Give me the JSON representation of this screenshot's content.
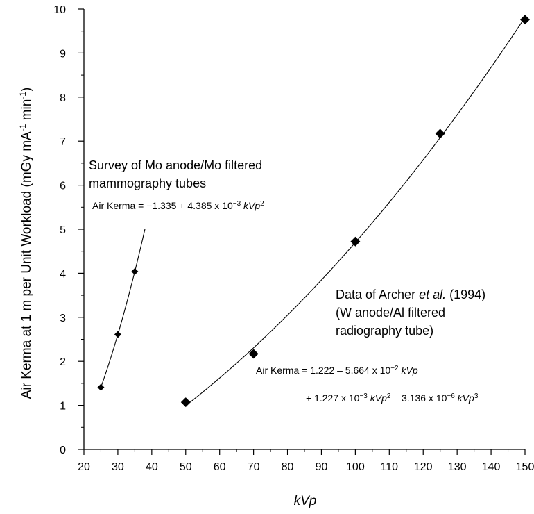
{
  "chart_data": {
    "type": "scatter",
    "title": "",
    "xlabel": "kVp",
    "ylabel": "Air Kerma at 1 m per Unit Workload (mGy mA-1 min-1)",
    "ylabel_parts": {
      "main": "Air Kerma at 1 m per Unit Workload (mGy mA",
      "sup1": "-1",
      "mid": " min",
      "sup2": "-1",
      "end": ")"
    },
    "xlim": [
      20,
      150
    ],
    "ylim": [
      0,
      10
    ],
    "x_ticks": [
      20,
      30,
      40,
      50,
      60,
      70,
      80,
      90,
      100,
      110,
      120,
      130,
      140,
      150
    ],
    "y_ticks": [
      0,
      1,
      2,
      3,
      4,
      5,
      6,
      7,
      8,
      9,
      10
    ],
    "grid": false,
    "legend": "none",
    "series": [
      {
        "name": "Survey of Mo anode/Mo filtered mammography tubes",
        "marker": "diamond-small",
        "x": [
          25,
          30,
          35
        ],
        "y": [
          1.41,
          2.61,
          4.04
        ],
        "fit_range": [
          25,
          38
        ]
      },
      {
        "name": "Data of Archer et al. (1994) (W anode/Al filtered radiography tube)",
        "marker": "diamond-large",
        "x": [
          50,
          70,
          100,
          125,
          150
        ],
        "y": [
          1.07,
          2.17,
          4.72,
          7.17,
          9.76
        ],
        "fit_range": [
          50,
          150
        ]
      }
    ],
    "annotations": {
      "mammo_line1": "Survey of Mo anode/Mo filtered",
      "mammo_line2": "mammography tubes",
      "mammo_eq_a": "Air Kerma = −1.335 + 4.385 x 10",
      "mammo_eq_b": "−3",
      "mammo_eq_c": " kVp",
      "mammo_eq_d": "2",
      "archer_l1_a": "Data of Archer ",
      "archer_l1_b": "et al.",
      "archer_l1_c": " (1994)",
      "archer_l2": "(W anode/Al filtered",
      "archer_l3": "radiography tube)",
      "archer_eq1_a": "Air Kerma = 1.222 – 5.664 x 10",
      "archer_eq1_b": "−2",
      "archer_eq1_c": " kVp",
      "archer_eq2_a": "+ 1.227 x 10",
      "archer_eq2_b": "−3",
      "archer_eq2_c": " kVp",
      "archer_eq2_d": "2",
      "archer_eq2_e": " – 3.136 x 10",
      "archer_eq2_f": "−6",
      "archer_eq2_g": " kVp",
      "archer_eq2_h": "3"
    }
  }
}
